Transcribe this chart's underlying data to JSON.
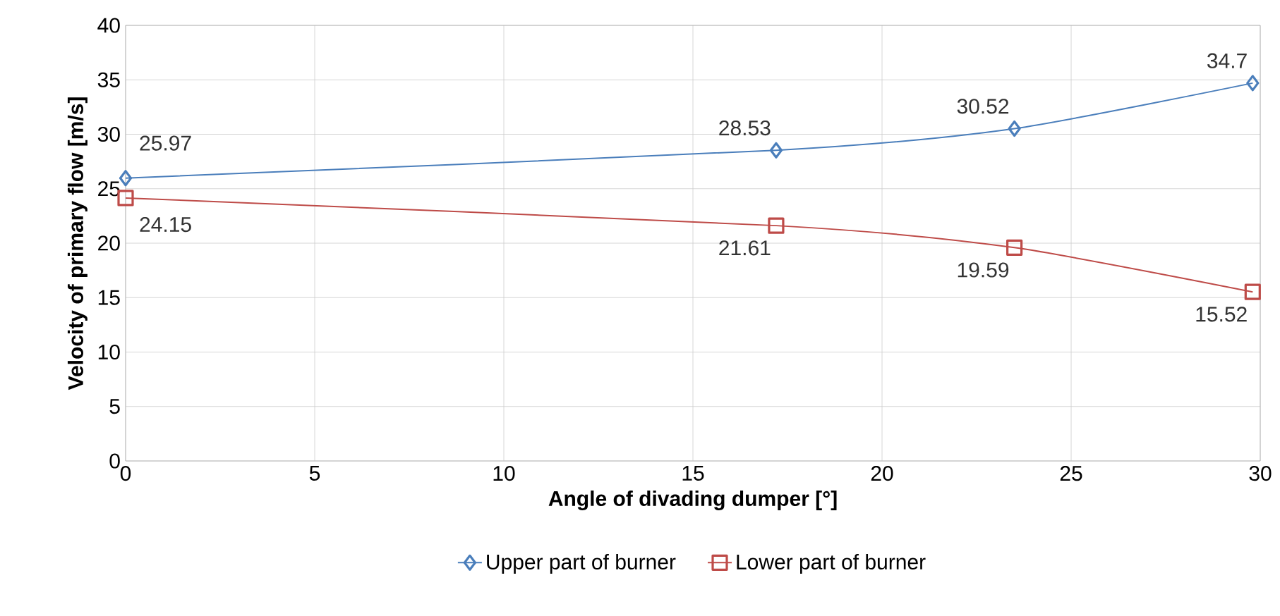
{
  "chart_data": {
    "type": "line",
    "xlabel": "Angle of divading dumper [°]",
    "ylabel": "Velocity of primary flow [m/s]",
    "xlim": [
      0,
      30
    ],
    "xticks": [
      0,
      5,
      10,
      15,
      20,
      25,
      30
    ],
    "ylim": [
      0,
      40
    ],
    "yticks": [
      0,
      5,
      10,
      15,
      20,
      25,
      30,
      35,
      40
    ],
    "grid": true,
    "legend": "bottom",
    "data_labels": true,
    "series": [
      {
        "name": "Upper part of burner",
        "color": "#4a7ebb",
        "marker": "diamond",
        "x": [
          0,
          17.2,
          23.5,
          29.8
        ],
        "values": [
          25.97,
          28.53,
          30.52,
          34.7
        ]
      },
      {
        "name": "Lower part of burner",
        "color": "#be4b48",
        "marker": "square",
        "x": [
          0,
          17.2,
          23.5,
          29.8
        ],
        "values": [
          24.15,
          21.61,
          19.59,
          15.52
        ]
      }
    ]
  }
}
